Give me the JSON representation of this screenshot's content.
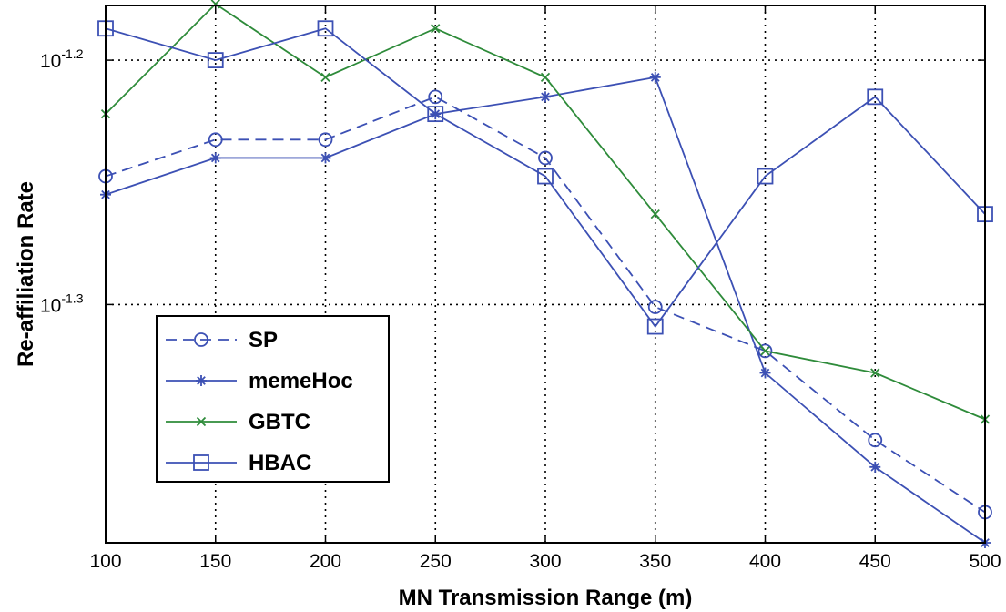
{
  "chart_data": {
    "type": "line",
    "title": "",
    "xlabel": "MN Transmission Range (m)",
    "ylabel": "Re-affiliation Rate",
    "x": [
      100,
      150,
      200,
      250,
      300,
      350,
      400,
      450,
      500
    ],
    "xlim": [
      100,
      500
    ],
    "ylog_exponent_range": [
      -1.3975,
      -1.1776
    ],
    "yscale": "log",
    "yticks": [
      {
        "exp": -1.2,
        "base": "10",
        "sup": "-1.2"
      },
      {
        "exp": -1.3,
        "base": "10",
        "sup": "-1.3"
      }
    ],
    "grid": true,
    "legend_position": "lower-left",
    "series": [
      {
        "name": "SP",
        "color": "#3c50b4",
        "marker": "circle",
        "dash": "dashed",
        "log10_values": [
          -1.2475,
          -1.2325,
          -1.2325,
          -1.215,
          -1.24,
          -1.301,
          -1.319,
          -1.3555,
          -1.385
        ]
      },
      {
        "name": "memeHoc",
        "color": "#3c50b4",
        "marker": "star",
        "dash": "solid",
        "log10_values": [
          -1.255,
          -1.24,
          -1.24,
          -1.222,
          -1.215,
          -1.207,
          -1.328,
          -1.3665,
          -1.3975
        ]
      },
      {
        "name": "GBTC",
        "color": "#2e8b3a",
        "marker": "x",
        "dash": "solid",
        "log10_values": [
          -1.222,
          -1.177,
          -1.207,
          -1.187,
          -1.207,
          -1.263,
          -1.319,
          -1.328,
          -1.347
        ]
      },
      {
        "name": "HBAC",
        "color": "#3c50b4",
        "marker": "square",
        "dash": "solid",
        "log10_values": [
          -1.187,
          -1.2,
          -1.187,
          -1.222,
          -1.2475,
          -1.309,
          -1.2475,
          -1.215,
          -1.263
        ]
      }
    ]
  }
}
